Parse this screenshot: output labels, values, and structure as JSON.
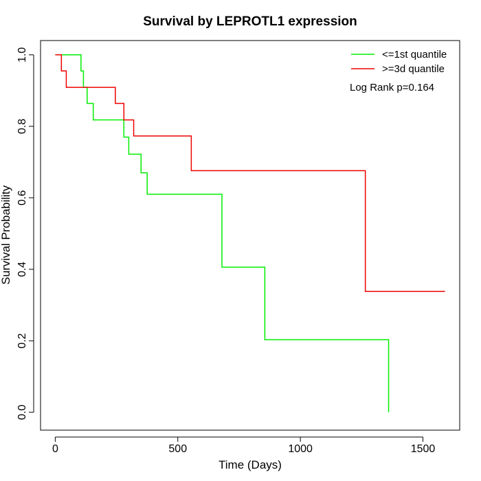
{
  "chart_data": {
    "type": "line",
    "title": "Survival by LEPROTL1 expression",
    "xlabel": "Time (Days)",
    "ylabel": "Survival Probability",
    "xlim": [
      -60,
      1650
    ],
    "ylim": [
      -0.05,
      1.04
    ],
    "xticks": [
      0,
      500,
      1000,
      1500
    ],
    "yticks": [
      0.0,
      0.2,
      0.4,
      0.6,
      0.8,
      1.0
    ],
    "xtick_labels": [
      "0",
      "500",
      "1000",
      "1500"
    ],
    "ytick_labels": [
      "0.0",
      "0.2",
      "0.4",
      "0.6",
      "0.8",
      "1.0"
    ],
    "legend_position": "top-right",
    "annotation": "Log Rank p=0.164",
    "series": [
      {
        "name": "<=1st quantile",
        "color": "#00ee00",
        "x": [
          0,
          105,
          115,
          130,
          155,
          280,
          300,
          350,
          375,
          680,
          855,
          1360,
          1360
        ],
        "y": [
          1.0,
          0.955,
          0.909,
          0.864,
          0.818,
          0.77,
          0.722,
          0.67,
          0.61,
          0.406,
          0.203,
          0.0,
          0.0
        ]
      },
      {
        "name": ">=3d quantile",
        "color": "#ee0000",
        "x": [
          0,
          25,
          45,
          245,
          280,
          320,
          555,
          1265,
          1590
        ],
        "y": [
          1.0,
          0.955,
          0.909,
          0.864,
          0.818,
          0.773,
          0.676,
          0.338,
          0.338
        ]
      }
    ]
  }
}
